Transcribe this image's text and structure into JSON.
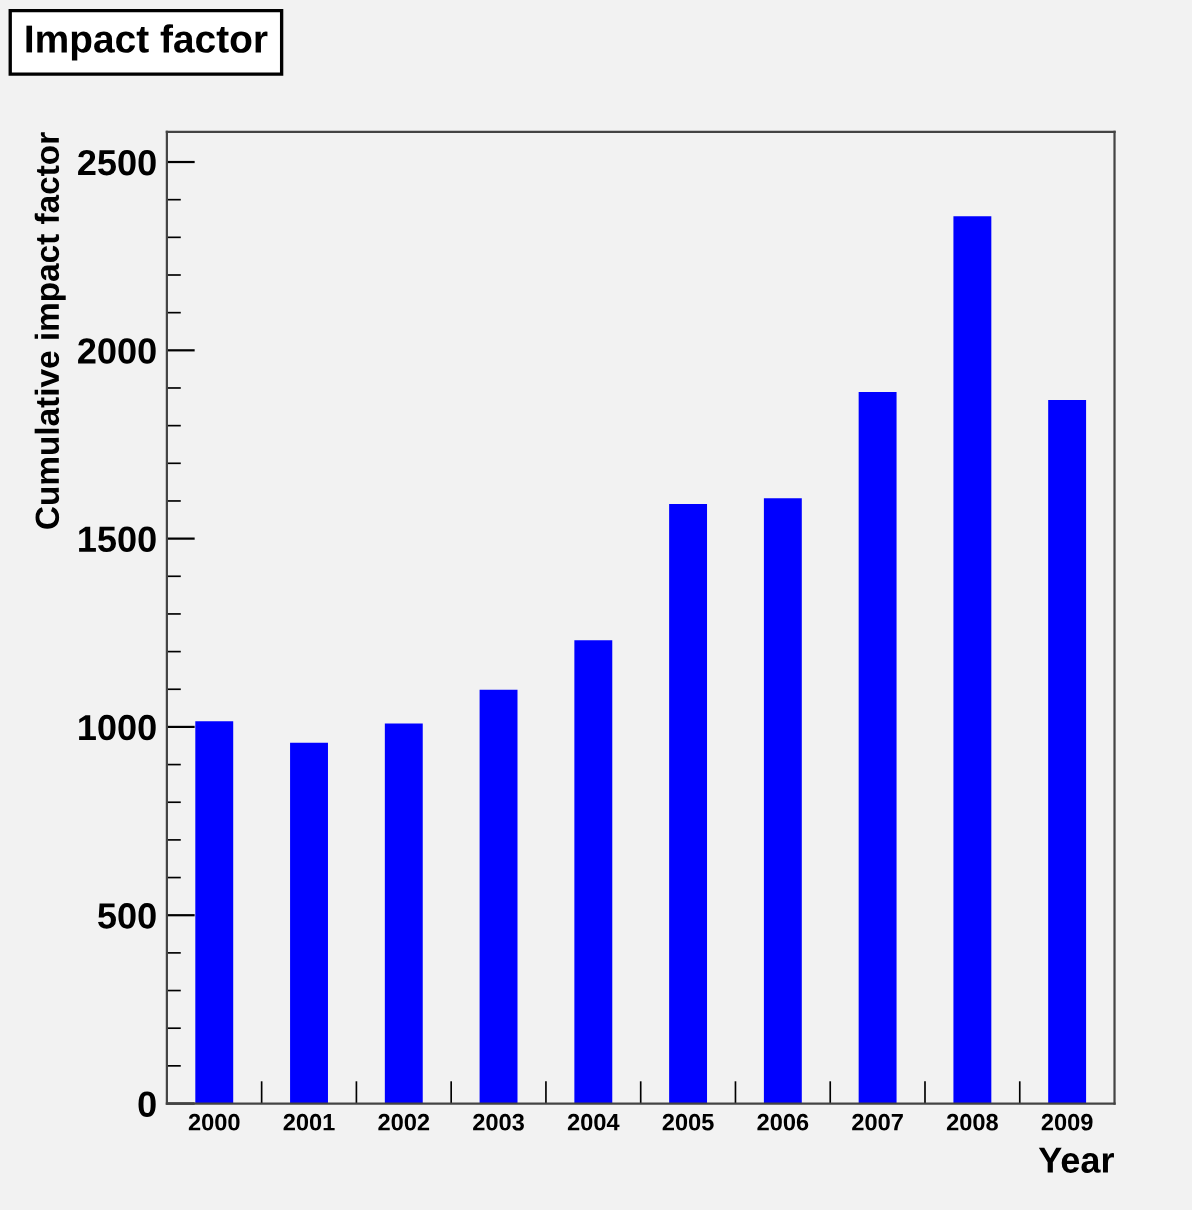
{
  "chart_data": {
    "type": "bar",
    "title": "Impact factor",
    "xlabel": "Year",
    "ylabel": "Cumulative impact factor",
    "categories": [
      "2000",
      "2001",
      "2002",
      "2003",
      "2004",
      "2005",
      "2006",
      "2007",
      "2008",
      "2009"
    ],
    "values": [
      1015,
      958,
      1009,
      1099,
      1230,
      1592,
      1607,
      1889,
      2356,
      1868
    ],
    "color": "#0000ff",
    "ylim": [
      0,
      2580
    ],
    "yticks": [
      0,
      500,
      1000,
      1500,
      2000,
      2500
    ],
    "grid": false,
    "legend": false
  }
}
